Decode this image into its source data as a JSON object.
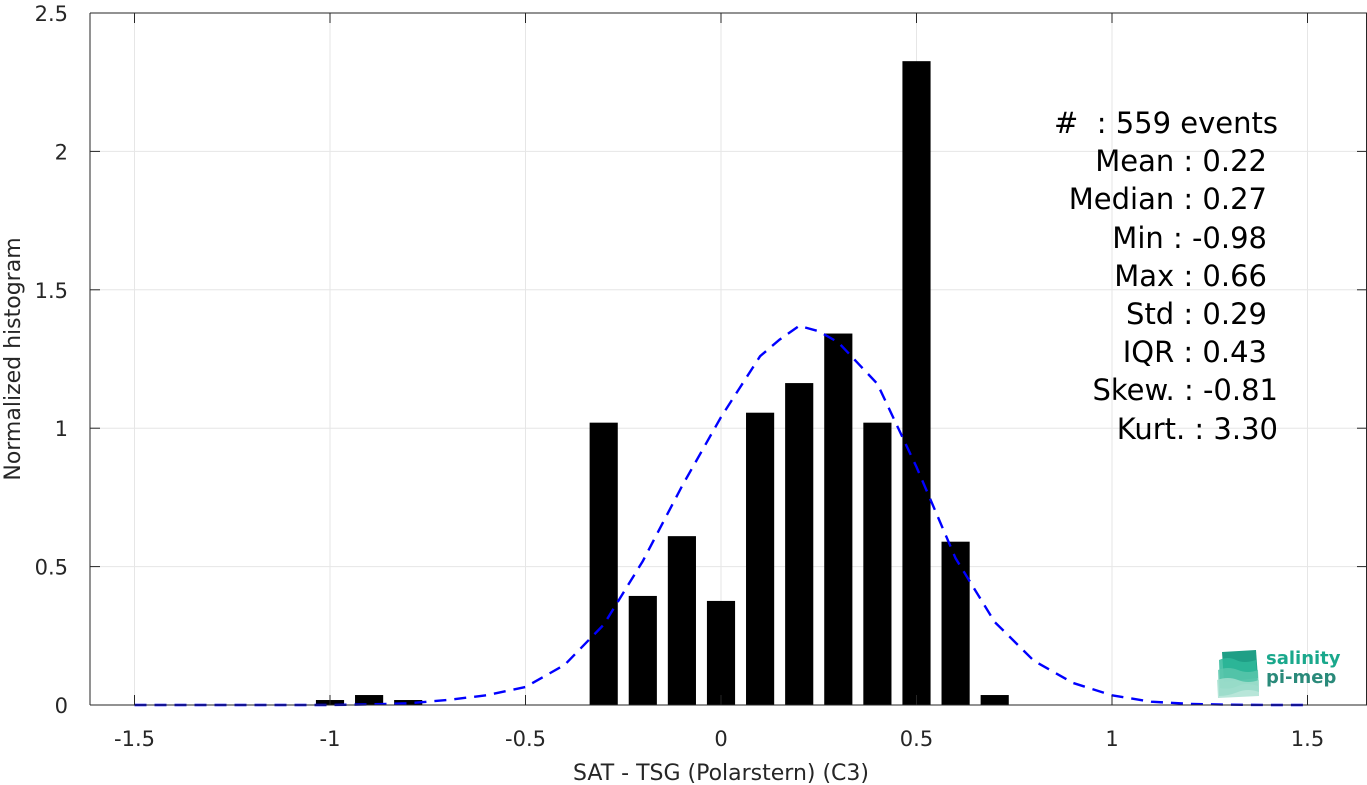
{
  "chart_data": {
    "type": "bar",
    "xlabel": "SAT - TSG (Polarstern) (C3)",
    "ylabel": "Normalized histogram",
    "xlim": [
      -1.5,
      1.5
    ],
    "ylim": [
      0,
      2.5
    ],
    "x_ticks": [
      -1.5,
      -1,
      -0.5,
      0,
      0.5,
      1,
      1.5
    ],
    "x_tick_labels": [
      "-1.5",
      "-1",
      "-0.5",
      "0",
      "0.5",
      "1",
      "1.5"
    ],
    "y_ticks": [
      0,
      0.5,
      1,
      1.5,
      2,
      2.5
    ],
    "y_tick_labels": [
      "0",
      "0.5",
      "1",
      "1.5",
      "2",
      "2.5"
    ],
    "grid": true,
    "bin_width": 0.1,
    "bars": {
      "centers": [
        -1.0,
        -0.9,
        -0.8,
        -0.3,
        -0.2,
        -0.1,
        0.0,
        0.1,
        0.2,
        0.3,
        0.4,
        0.5,
        0.6,
        0.7
      ],
      "values": [
        0.018,
        0.036,
        0.018,
        1.02,
        0.394,
        0.61,
        0.376,
        1.056,
        1.163,
        1.342,
        1.02,
        2.326,
        0.59,
        0.036
      ],
      "color": "#000000"
    },
    "fit_curve": {
      "style": "dashed",
      "color": "#0000ff",
      "x": [
        -1.5,
        -1.4,
        -1.3,
        -1.2,
        -1.1,
        -1.0,
        -0.9,
        -0.8,
        -0.7,
        -0.6,
        -0.5,
        -0.4,
        -0.3,
        -0.2,
        -0.1,
        0.0,
        0.1,
        0.15,
        0.2,
        0.25,
        0.3,
        0.4,
        0.5,
        0.6,
        0.7,
        0.8,
        0.9,
        1.0,
        1.1,
        1.2,
        1.3,
        1.4,
        1.5
      ],
      "y": [
        0.0,
        0.0,
        0.0,
        0.0,
        0.0,
        0.0,
        0.002,
        0.006,
        0.018,
        0.035,
        0.065,
        0.145,
        0.29,
        0.52,
        0.79,
        1.04,
        1.26,
        1.32,
        1.37,
        1.35,
        1.31,
        1.16,
        0.86,
        0.53,
        0.3,
        0.16,
        0.08,
        0.035,
        0.012,
        0.004,
        0.001,
        0.0,
        0.0
      ]
    },
    "stats": {
      "events": "#  : 559 events",
      "mean": "Mean : 0.22",
      "median": "Median : 0.27",
      "min": "Min : -0.98",
      "max": "Max : 0.66",
      "std": "Std : 0.29",
      "iqr": "IQR : 0.43",
      "skew": "Skew. : -0.81",
      "kurt": "Kurt. : 3.30"
    }
  },
  "logo": {
    "line1": "salinity",
    "line2": "pi-mep",
    "color1": "#1aa88c",
    "color2": "#2a8a7a"
  }
}
